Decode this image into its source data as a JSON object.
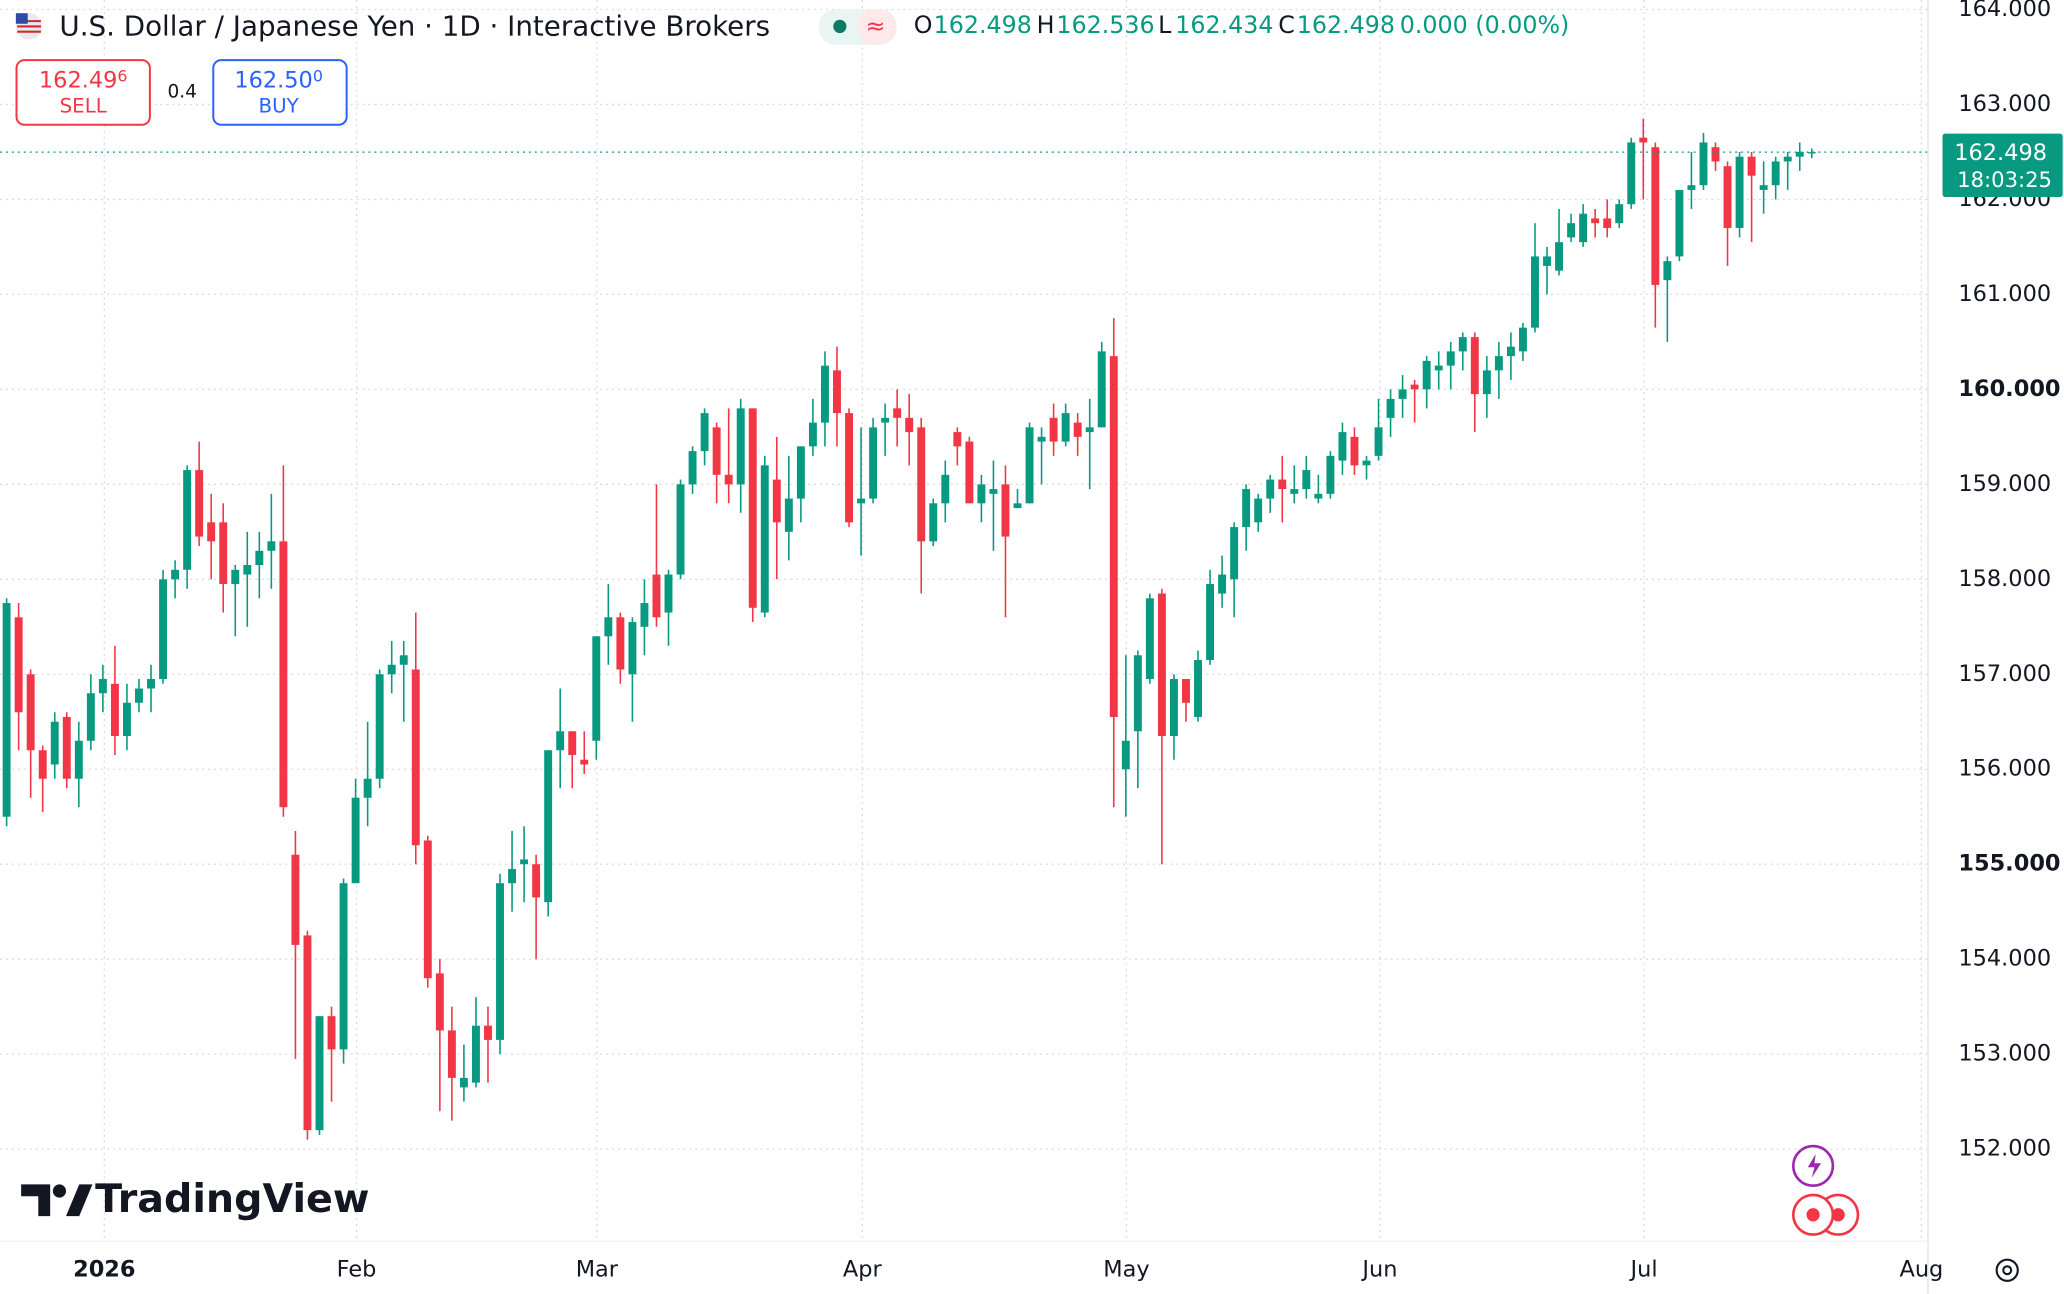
{
  "header": {
    "title": "U.S. Dollar / Japanese Yen · 1D · Interactive Brokers",
    "o_label": "O",
    "h_label": "H",
    "l_label": "L",
    "c_label": "C",
    "change": "0.000 (0.00%)"
  },
  "trade": {
    "sell_price": "162.49",
    "sell_pip": "6",
    "sell_label": "SELL",
    "spread": "0.4",
    "buy_price": "162.50",
    "buy_pip": "0",
    "buy_label": "BUY"
  },
  "countdown": "18:03:25",
  "logo": "TradingView",
  "chart_data": {
    "type": "candlestick",
    "up_color": "#089981",
    "down_color": "#f23645",
    "grid": true,
    "xtick_labels": [
      "2026",
      "Feb",
      "Mar",
      "Apr",
      "May",
      "Jun",
      "Jul",
      "Aug"
    ],
    "ylim": [
      151.05,
      164.1
    ],
    "yticks": [
      {
        "value": 152,
        "label": "152.000"
      },
      {
        "value": 153,
        "label": "153.000"
      },
      {
        "value": 154,
        "label": "154.000"
      },
      {
        "value": 155,
        "label": "155.000"
      },
      {
        "value": 156,
        "label": "156.000"
      },
      {
        "value": 157,
        "label": "157.000"
      },
      {
        "value": 158,
        "label": "158.000"
      },
      {
        "value": 159,
        "label": "159.000"
      },
      {
        "value": 160,
        "label": "160.000"
      },
      {
        "value": 161,
        "label": "161.000"
      },
      {
        "value": 162,
        "label": "162.000"
      },
      {
        "value": 163,
        "label": "163.000"
      },
      {
        "value": 164,
        "label": "164.000"
      }
    ],
    "open": [
      155.5,
      157.6,
      157.0,
      156.2,
      156.05,
      156.55,
      155.9,
      156.3,
      156.8,
      156.9,
      156.35,
      156.7,
      156.85,
      156.95,
      158.0,
      158.1,
      159.15,
      158.6,
      158.6,
      157.95,
      158.05,
      158.15,
      158.3,
      158.4,
      155.1,
      154.25,
      152.2,
      153.4,
      153.05,
      154.8,
      155.7,
      155.9,
      157.0,
      157.1,
      157.05,
      155.25,
      153.85,
      153.25,
      152.65,
      152.7,
      153.3,
      153.15,
      154.8,
      155.0,
      155.0,
      154.6,
      156.2,
      156.4,
      156.1,
      156.3,
      157.4,
      157.6,
      157.0,
      157.5,
      158.05,
      157.65,
      158.05,
      159.0,
      159.35,
      159.6,
      159.1,
      159.0,
      159.8,
      157.65,
      159.05,
      158.5,
      158.85,
      159.4,
      159.65,
      160.2,
      159.75,
      158.8,
      158.85,
      159.65,
      159.8,
      159.7,
      159.6,
      158.4,
      158.8,
      159.55,
      159.45,
      158.8,
      158.9,
      159.0,
      158.75,
      158.8,
      159.45,
      159.7,
      159.45,
      159.65,
      159.55,
      159.6,
      160.35,
      156.0,
      156.4,
      156.95,
      157.85,
      156.35,
      156.95,
      156.55,
      157.15,
      157.85,
      158.0,
      158.55,
      158.6,
      158.85,
      159.05,
      158.9,
      158.95,
      158.85,
      158.9,
      159.25,
      159.5,
      159.2,
      159.3,
      159.7,
      159.9,
      160.05,
      160.0,
      160.2,
      160.25,
      160.4,
      160.55,
      159.95,
      160.2,
      160.35,
      160.4,
      160.65,
      161.3,
      161.25,
      161.6,
      161.55,
      161.8,
      161.8,
      161.75,
      161.95,
      162.65,
      162.55,
      161.15,
      161.4,
      162.1,
      162.15,
      162.55,
      162.35,
      161.7,
      162.45,
      162.1,
      162.15,
      162.4,
      162.45,
      162.498
    ],
    "high": [
      157.8,
      157.75,
      157.05,
      156.25,
      156.6,
      156.6,
      156.5,
      157.0,
      157.1,
      157.3,
      156.9,
      156.95,
      157.1,
      158.1,
      158.2,
      159.2,
      159.45,
      158.9,
      158.8,
      158.15,
      158.5,
      158.5,
      158.9,
      159.2,
      155.35,
      154.3,
      153.4,
      153.5,
      154.85,
      155.9,
      156.5,
      157.05,
      157.35,
      157.35,
      157.65,
      155.3,
      154.0,
      153.5,
      153.1,
      153.6,
      153.5,
      154.9,
      155.35,
      155.4,
      155.1,
      156.2,
      156.85,
      156.4,
      156.4,
      157.4,
      157.95,
      157.65,
      157.6,
      158.0,
      159.0,
      158.1,
      159.05,
      159.4,
      159.8,
      159.65,
      159.8,
      159.9,
      159.8,
      159.3,
      159.5,
      159.3,
      159.4,
      159.9,
      160.4,
      160.45,
      159.8,
      159.6,
      159.7,
      159.85,
      160.0,
      159.95,
      159.7,
      158.85,
      159.25,
      159.6,
      159.5,
      159.1,
      159.25,
      159.2,
      158.95,
      159.65,
      159.6,
      159.85,
      159.85,
      159.75,
      159.9,
      160.5,
      160.75,
      157.2,
      157.25,
      157.85,
      157.9,
      157.0,
      156.95,
      157.25,
      158.1,
      158.25,
      158.6,
      159.0,
      158.9,
      159.1,
      159.3,
      159.2,
      159.3,
      159.1,
      159.35,
      159.65,
      159.6,
      159.3,
      159.9,
      160.0,
      160.15,
      160.1,
      160.35,
      160.4,
      160.5,
      160.6,
      160.6,
      160.35,
      160.5,
      160.6,
      160.7,
      161.75,
      161.5,
      161.9,
      161.85,
      161.95,
      161.9,
      162.0,
      162.0,
      162.65,
      162.85,
      162.6,
      161.4,
      162.1,
      162.5,
      162.7,
      162.6,
      162.4,
      162.5,
      162.5,
      162.4,
      162.45,
      162.5,
      162.6,
      162.536
    ],
    "low": [
      155.4,
      156.2,
      155.7,
      155.55,
      155.9,
      155.8,
      155.6,
      156.2,
      156.6,
      156.15,
      156.2,
      156.6,
      156.6,
      156.9,
      157.8,
      157.9,
      158.35,
      158.0,
      157.65,
      157.4,
      157.5,
      157.8,
      157.9,
      155.5,
      152.95,
      152.1,
      152.15,
      152.5,
      152.9,
      154.8,
      155.4,
      155.8,
      156.8,
      156.5,
      155.0,
      153.7,
      152.4,
      152.3,
      152.5,
      152.65,
      152.7,
      153.0,
      154.5,
      154.6,
      154.0,
      154.45,
      155.8,
      155.8,
      155.95,
      156.1,
      157.1,
      156.9,
      156.5,
      157.2,
      157.5,
      157.3,
      158.0,
      158.9,
      159.2,
      158.8,
      158.8,
      158.7,
      157.55,
      157.6,
      158.0,
      158.2,
      158.6,
      159.3,
      159.4,
      159.4,
      158.55,
      158.25,
      158.8,
      159.3,
      159.4,
      159.2,
      157.85,
      158.35,
      158.6,
      159.2,
      158.8,
      158.6,
      158.3,
      157.6,
      158.75,
      158.8,
      159.0,
      159.3,
      159.4,
      159.3,
      158.95,
      159.6,
      155.6,
      155.5,
      155.8,
      156.9,
      155.0,
      156.1,
      156.5,
      156.5,
      157.1,
      157.7,
      157.6,
      158.3,
      158.5,
      158.7,
      158.6,
      158.8,
      158.85,
      158.8,
      158.85,
      159.1,
      159.1,
      159.05,
      159.25,
      159.5,
      159.7,
      159.65,
      159.8,
      160.0,
      160.0,
      160.2,
      159.55,
      159.7,
      159.9,
      160.1,
      160.3,
      160.6,
      161.0,
      161.2,
      161.55,
      161.5,
      161.6,
      161.6,
      161.7,
      161.9,
      162.0,
      160.65,
      160.5,
      161.35,
      161.9,
      162.1,
      162.3,
      161.3,
      161.6,
      161.55,
      161.85,
      162.0,
      162.1,
      162.3,
      162.434
    ],
    "close": [
      157.75,
      156.6,
      156.2,
      155.9,
      156.5,
      155.9,
      156.3,
      156.8,
      156.95,
      156.35,
      156.7,
      156.85,
      156.95,
      158.0,
      158.1,
      159.15,
      158.45,
      158.4,
      157.95,
      158.1,
      158.15,
      158.3,
      158.4,
      155.6,
      154.15,
      152.2,
      153.4,
      153.05,
      154.8,
      155.7,
      155.9,
      157.0,
      157.1,
      157.2,
      155.2,
      153.8,
      153.25,
      152.75,
      152.75,
      153.3,
      153.15,
      154.8,
      154.95,
      155.05,
      154.65,
      156.2,
      156.4,
      156.15,
      156.05,
      157.4,
      157.6,
      157.05,
      157.55,
      157.75,
      157.6,
      158.05,
      159.0,
      159.35,
      159.75,
      159.1,
      159.0,
      159.8,
      157.7,
      159.2,
      158.6,
      158.85,
      159.4,
      159.65,
      160.25,
      159.75,
      158.6,
      158.85,
      159.6,
      159.7,
      159.7,
      159.55,
      158.4,
      158.8,
      159.1,
      159.4,
      158.8,
      159.0,
      158.95,
      158.45,
      158.8,
      159.6,
      159.5,
      159.45,
      159.75,
      159.5,
      159.6,
      160.4,
      156.55,
      156.3,
      157.2,
      157.8,
      156.35,
      156.95,
      156.7,
      157.15,
      157.95,
      158.05,
      158.55,
      158.95,
      158.85,
      159.05,
      158.95,
      158.95,
      159.15,
      158.9,
      159.3,
      159.55,
      159.2,
      159.25,
      159.6,
      159.9,
      160.0,
      160.0,
      160.3,
      160.25,
      160.4,
      160.55,
      159.95,
      160.2,
      160.35,
      160.45,
      160.65,
      161.4,
      161.4,
      161.55,
      161.75,
      161.85,
      161.75,
      161.7,
      161.95,
      162.6,
      162.6,
      161.1,
      161.35,
      162.1,
      162.15,
      162.6,
      162.4,
      161.7,
      162.45,
      162.25,
      162.15,
      162.4,
      162.45,
      162.5,
      162.498
    ]
  }
}
